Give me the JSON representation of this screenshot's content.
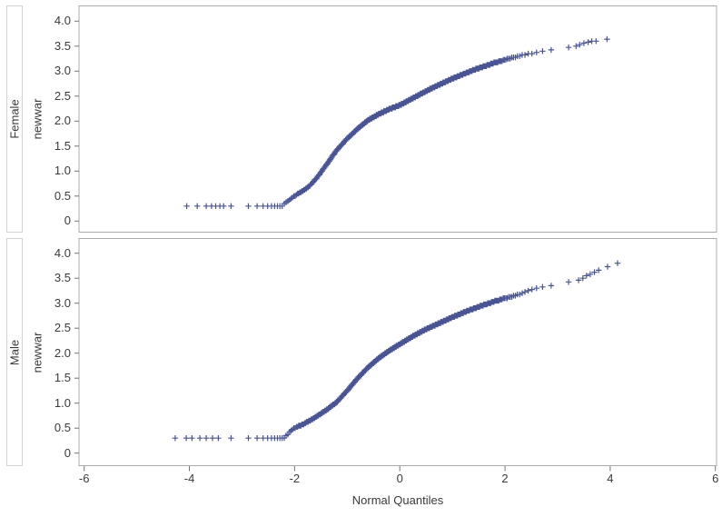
{
  "chart_data": {
    "type": "scatter",
    "title": "",
    "xlabel": "Normal Quantiles",
    "ylabel": "newwar",
    "x_tick_values": [
      -6,
      -4,
      -2,
      0,
      2,
      4,
      6
    ],
    "x_tick_labels": [
      "-6",
      "-4",
      "-2",
      "0",
      "2",
      "4",
      "6"
    ],
    "y_tick_values": [
      0,
      0.5,
      1.0,
      1.5,
      2.0,
      2.5,
      3.0,
      3.5,
      4.0
    ],
    "y_tick_labels": [
      "0",
      "0.5",
      "1.0",
      "1.5",
      "2.0",
      "2.5",
      "3.0",
      "3.5",
      "4.0"
    ],
    "xlim": [
      -6.1,
      6.05
    ],
    "ylim": [
      -0.22,
      4.32
    ],
    "grid": false,
    "legend": "none",
    "marker": {
      "shape": "plus",
      "size": 7,
      "color": "#485496"
    },
    "colors": {
      "frame": "#ababab",
      "tick": "#747474",
      "text": "#3a3a3a",
      "background": "#ffffff"
    },
    "panels": [
      {
        "label": "Female",
        "n_points": 750,
        "floor_value": 0.3,
        "curve": [
          [
            -3.7,
            0.3
          ],
          [
            -2.25,
            0.3
          ],
          [
            -2.15,
            0.38
          ],
          [
            -2.0,
            0.5
          ],
          [
            -1.85,
            0.6
          ],
          [
            -1.7,
            0.72
          ],
          [
            -1.55,
            0.9
          ],
          [
            -1.4,
            1.12
          ],
          [
            -1.2,
            1.42
          ],
          [
            -1.0,
            1.65
          ],
          [
            -0.8,
            1.85
          ],
          [
            -0.6,
            2.02
          ],
          [
            -0.4,
            2.14
          ],
          [
            -0.2,
            2.24
          ],
          [
            0,
            2.32
          ],
          [
            0.25,
            2.46
          ],
          [
            0.5,
            2.6
          ],
          [
            0.75,
            2.73
          ],
          [
            1.0,
            2.85
          ],
          [
            1.25,
            2.96
          ],
          [
            1.5,
            3.06
          ],
          [
            1.75,
            3.15
          ],
          [
            2.0,
            3.23
          ],
          [
            2.25,
            3.3
          ],
          [
            2.5,
            3.36
          ],
          [
            2.75,
            3.41
          ],
          [
            3.0,
            3.45
          ],
          [
            3.35,
            3.5
          ]
        ],
        "left_outliers": [
          [
            -4.05,
            0.3
          ],
          [
            -3.85,
            0.3
          ],
          [
            -3.68,
            0.3
          ],
          [
            -3.58,
            0.3
          ],
          [
            -3.5,
            0.3
          ],
          [
            -3.42,
            0.3
          ],
          [
            -3.35,
            0.3
          ]
        ],
        "right_outliers": [
          [
            3.35,
            3.5
          ],
          [
            3.42,
            3.53
          ],
          [
            3.5,
            3.56
          ],
          [
            3.58,
            3.58
          ],
          [
            3.65,
            3.6
          ],
          [
            3.73,
            3.6
          ],
          [
            3.94,
            3.64
          ]
        ]
      },
      {
        "label": "Male",
        "n_points": 750,
        "floor_value": 0.3,
        "curve": [
          [
            -3.7,
            0.3
          ],
          [
            -2.2,
            0.3
          ],
          [
            -2.1,
            0.42
          ],
          [
            -2.0,
            0.5
          ],
          [
            -1.8,
            0.6
          ],
          [
            -1.6,
            0.72
          ],
          [
            -1.4,
            0.86
          ],
          [
            -1.2,
            1.02
          ],
          [
            -1.0,
            1.25
          ],
          [
            -0.8,
            1.5
          ],
          [
            -0.6,
            1.72
          ],
          [
            -0.4,
            1.9
          ],
          [
            -0.2,
            2.05
          ],
          [
            0,
            2.18
          ],
          [
            0.25,
            2.34
          ],
          [
            0.5,
            2.48
          ],
          [
            0.75,
            2.6
          ],
          [
            1.0,
            2.72
          ],
          [
            1.25,
            2.83
          ],
          [
            1.5,
            2.93
          ],
          [
            1.75,
            3.02
          ],
          [
            2.0,
            3.1
          ],
          [
            2.25,
            3.17
          ],
          [
            2.5,
            3.28
          ],
          [
            2.75,
            3.33
          ],
          [
            3.0,
            3.38
          ],
          [
            3.35,
            3.45
          ]
        ],
        "left_outliers": [
          [
            -4.27,
            0.3
          ],
          [
            -4.06,
            0.3
          ],
          [
            -3.95,
            0.3
          ],
          [
            -3.8,
            0.3
          ],
          [
            -3.68,
            0.3
          ],
          [
            -3.56,
            0.3
          ],
          [
            -3.45,
            0.3
          ]
        ],
        "right_outliers": [
          [
            3.4,
            3.46
          ],
          [
            3.48,
            3.5
          ],
          [
            3.55,
            3.55
          ],
          [
            3.62,
            3.58
          ],
          [
            3.7,
            3.62
          ],
          [
            3.78,
            3.66
          ],
          [
            3.95,
            3.73
          ],
          [
            4.14,
            3.8
          ]
        ]
      }
    ]
  }
}
